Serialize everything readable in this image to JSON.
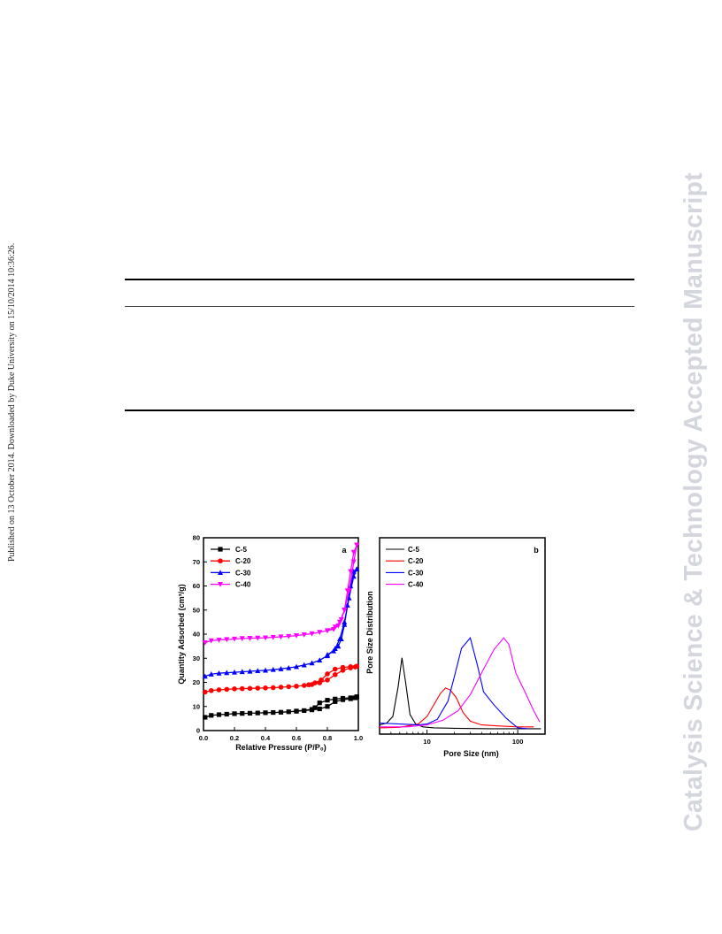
{
  "page": {
    "side_note": "Published on 13 October 2014. Downloaded by Duke University on 15/10/2014 10:36:26.",
    "watermark": "Catalysis Science & Technology Accepted Manuscript"
  },
  "chart_data": [
    {
      "type": "line",
      "panel_label": "a",
      "xlabel": "Relative Pressure (P/P₀)",
      "ylabel": "Quantity Adsorbed (cm³/g)",
      "xlim": [
        0.0,
        1.0
      ],
      "ylim": [
        0,
        80
      ],
      "xticks": [
        0.0,
        0.2,
        0.4,
        0.6,
        0.8,
        1.0
      ],
      "xtick_labels": [
        "0.0",
        "0.2",
        "0.4",
        "0.6",
        "0.8",
        "1.0"
      ],
      "yticks": [
        0,
        10,
        20,
        30,
        40,
        50,
        60,
        70,
        80
      ],
      "ytick_labels": [
        "0",
        "10",
        "20",
        "30",
        "40",
        "50",
        "60",
        "70",
        "80"
      ],
      "legend_position": "top-left",
      "series": [
        {
          "name": "C-5",
          "color": "#000000",
          "marker": "square",
          "adsorption": [
            [
              0.01,
              5.5
            ],
            [
              0.05,
              6.3
            ],
            [
              0.1,
              6.6
            ],
            [
              0.15,
              6.8
            ],
            [
              0.2,
              7.0
            ],
            [
              0.25,
              7.1
            ],
            [
              0.3,
              7.2
            ],
            [
              0.35,
              7.3
            ],
            [
              0.4,
              7.4
            ],
            [
              0.45,
              7.5
            ],
            [
              0.5,
              7.6
            ],
            [
              0.55,
              7.8
            ],
            [
              0.6,
              8.0
            ],
            [
              0.65,
              8.3
            ],
            [
              0.7,
              8.6
            ],
            [
              0.75,
              9.0
            ],
            [
              0.8,
              10.0
            ],
            [
              0.85,
              12.0
            ],
            [
              0.9,
              12.8
            ],
            [
              0.95,
              13.2
            ],
            [
              0.98,
              13.6
            ],
            [
              0.99,
              14.0
            ]
          ],
          "desorption": [
            [
              0.99,
              14.0
            ],
            [
              0.95,
              13.6
            ],
            [
              0.9,
              13.4
            ],
            [
              0.85,
              13.1
            ],
            [
              0.8,
              12.6
            ],
            [
              0.75,
              11.5
            ],
            [
              0.72,
              9.5
            ],
            [
              0.7,
              8.8
            ],
            [
              0.6,
              8.1
            ]
          ]
        },
        {
          "name": "C-20",
          "color": "#ff0000",
          "marker": "circle",
          "adsorption": [
            [
              0.01,
              16.0
            ],
            [
              0.05,
              16.6
            ],
            [
              0.1,
              16.9
            ],
            [
              0.15,
              17.1
            ],
            [
              0.2,
              17.3
            ],
            [
              0.25,
              17.4
            ],
            [
              0.3,
              17.5
            ],
            [
              0.35,
              17.6
            ],
            [
              0.4,
              17.7
            ],
            [
              0.45,
              17.8
            ],
            [
              0.5,
              18.0
            ],
            [
              0.55,
              18.2
            ],
            [
              0.6,
              18.4
            ],
            [
              0.65,
              18.7
            ],
            [
              0.7,
              19.1
            ],
            [
              0.75,
              19.8
            ],
            [
              0.8,
              21.0
            ],
            [
              0.85,
              23.2
            ],
            [
              0.9,
              25.0
            ],
            [
              0.95,
              26.0
            ],
            [
              0.98,
              26.4
            ],
            [
              0.99,
              26.7
            ]
          ],
          "desorption": [
            [
              0.99,
              26.7
            ],
            [
              0.95,
              26.5
            ],
            [
              0.9,
              26.2
            ],
            [
              0.85,
              25.5
            ],
            [
              0.8,
              23.5
            ],
            [
              0.76,
              21.0
            ],
            [
              0.72,
              19.8
            ],
            [
              0.68,
              19.0
            ]
          ]
        },
        {
          "name": "C-30",
          "color": "#0000ff",
          "marker": "triangle-up",
          "adsorption": [
            [
              0.01,
              22.5
            ],
            [
              0.05,
              23.4
            ],
            [
              0.1,
              23.8
            ],
            [
              0.15,
              24.0
            ],
            [
              0.2,
              24.2
            ],
            [
              0.25,
              24.4
            ],
            [
              0.3,
              24.6
            ],
            [
              0.35,
              24.8
            ],
            [
              0.4,
              25.0
            ],
            [
              0.45,
              25.3
            ],
            [
              0.5,
              25.6
            ],
            [
              0.55,
              26.0
            ],
            [
              0.6,
              26.5
            ],
            [
              0.65,
              27.2
            ],
            [
              0.7,
              28.0
            ],
            [
              0.75,
              29.2
            ],
            [
              0.8,
              31.0
            ],
            [
              0.85,
              34.0
            ],
            [
              0.88,
              38.0
            ],
            [
              0.91,
              45.0
            ],
            [
              0.94,
              55.0
            ],
            [
              0.97,
              64.0
            ],
            [
              0.99,
              67.0
            ]
          ],
          "desorption": [
            [
              0.99,
              67.0
            ],
            [
              0.97,
              66.0
            ],
            [
              0.95,
              60.0
            ],
            [
              0.93,
              52.0
            ],
            [
              0.91,
              44.0
            ],
            [
              0.89,
              38.0
            ],
            [
              0.87,
              35.0
            ],
            [
              0.84,
              33.0
            ],
            [
              0.8,
              31.5
            ]
          ]
        },
        {
          "name": "C-40",
          "color": "#ff00ff",
          "marker": "triangle-down",
          "adsorption": [
            [
              0.01,
              36.5
            ],
            [
              0.05,
              37.3
            ],
            [
              0.1,
              37.6
            ],
            [
              0.15,
              37.8
            ],
            [
              0.2,
              38.0
            ],
            [
              0.25,
              38.2
            ],
            [
              0.3,
              38.3
            ],
            [
              0.35,
              38.4
            ],
            [
              0.4,
              38.5
            ],
            [
              0.45,
              38.7
            ],
            [
              0.5,
              38.9
            ],
            [
              0.55,
              39.1
            ],
            [
              0.6,
              39.4
            ],
            [
              0.65,
              39.8
            ],
            [
              0.7,
              40.2
            ],
            [
              0.75,
              40.8
            ],
            [
              0.8,
              41.5
            ],
            [
              0.85,
              43.0
            ],
            [
              0.88,
              45.0
            ],
            [
              0.91,
              50.0
            ],
            [
              0.94,
              58.0
            ],
            [
              0.97,
              70.0
            ],
            [
              0.99,
              77.0
            ]
          ],
          "desorption": [
            [
              0.99,
              77.0
            ],
            [
              0.97,
              74.0
            ],
            [
              0.95,
              66.0
            ],
            [
              0.93,
              58.0
            ],
            [
              0.91,
              50.0
            ],
            [
              0.89,
              46.0
            ],
            [
              0.87,
              43.5
            ],
            [
              0.84,
              42.0
            ],
            [
              0.8,
              41.5
            ]
          ]
        }
      ]
    },
    {
      "type": "line",
      "panel_label": "b",
      "xlabel": "Pore Size (nm)",
      "ylabel": "Pore Size Distribution",
      "xscale": "log",
      "xlim": [
        3,
        200
      ],
      "ylim": [
        0,
        1
      ],
      "xticks": [
        10,
        100
      ],
      "xtick_labels": [
        "10",
        "100"
      ],
      "legend_position": "top-left",
      "series": [
        {
          "name": "C-5",
          "color": "#000000",
          "points": [
            [
              3,
              0.05
            ],
            [
              3.6,
              0.07
            ],
            [
              4.2,
              0.14
            ],
            [
              4.8,
              0.45
            ],
            [
              5.3,
              0.76
            ],
            [
              5.8,
              0.5
            ],
            [
              6.5,
              0.16
            ],
            [
              7.5,
              0.06
            ],
            [
              9,
              0.03
            ],
            [
              12,
              0.02
            ],
            [
              20,
              0.015
            ],
            [
              50,
              0.01
            ],
            [
              100,
              0.01
            ],
            [
              180,
              0.01
            ]
          ]
        },
        {
          "name": "C-20",
          "color": "#ff0000",
          "points": [
            [
              3,
              0.02
            ],
            [
              5,
              0.025
            ],
            [
              8,
              0.06
            ],
            [
              10,
              0.14
            ],
            [
              12,
              0.27
            ],
            [
              14,
              0.38
            ],
            [
              16,
              0.44
            ],
            [
              18,
              0.42
            ],
            [
              21,
              0.34
            ],
            [
              25,
              0.18
            ],
            [
              30,
              0.09
            ],
            [
              40,
              0.05
            ],
            [
              60,
              0.04
            ],
            [
              100,
              0.03
            ],
            [
              150,
              0.03
            ]
          ]
        },
        {
          "name": "C-30",
          "color": "#0000ff",
          "points": [
            [
              3,
              0.07
            ],
            [
              5,
              0.06
            ],
            [
              8,
              0.05
            ],
            [
              10,
              0.06
            ],
            [
              13,
              0.11
            ],
            [
              17,
              0.3
            ],
            [
              20,
              0.56
            ],
            [
              24,
              0.86
            ],
            [
              30,
              0.97
            ],
            [
              36,
              0.68
            ],
            [
              42,
              0.4
            ],
            [
              55,
              0.26
            ],
            [
              75,
              0.12
            ],
            [
              100,
              0.02
            ],
            [
              130,
              0.01
            ]
          ]
        },
        {
          "name": "C-40",
          "color": "#ff00ff",
          "points": [
            [
              3,
              0.03
            ],
            [
              6,
              0.03
            ],
            [
              10,
              0.05
            ],
            [
              15,
              0.1
            ],
            [
              22,
              0.2
            ],
            [
              30,
              0.37
            ],
            [
              40,
              0.6
            ],
            [
              55,
              0.85
            ],
            [
              70,
              0.97
            ],
            [
              80,
              0.9
            ],
            [
              95,
              0.6
            ],
            [
              120,
              0.4
            ],
            [
              150,
              0.2
            ],
            [
              175,
              0.08
            ]
          ]
        }
      ]
    }
  ]
}
